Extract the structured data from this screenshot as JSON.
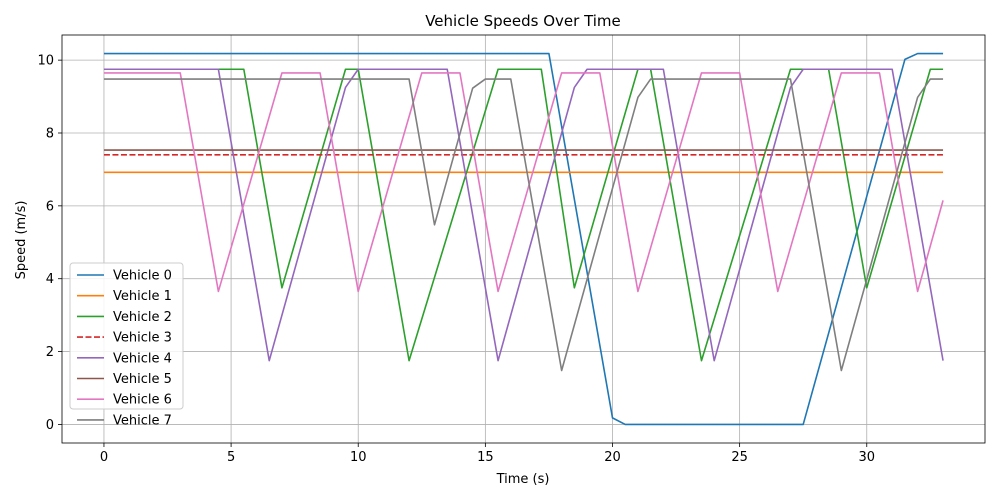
{
  "chart_data": {
    "type": "line",
    "title": "Vehicle Speeds Over Time",
    "xlabel": "Time (s)",
    "ylabel": "Speed (m/s)",
    "xlim": [
      -1.65,
      34.65
    ],
    "ylim": [
      -0.51,
      10.69
    ],
    "xticks": [
      0,
      5,
      10,
      15,
      20,
      25,
      30
    ],
    "yticks": [
      0,
      2,
      4,
      6,
      8,
      10
    ],
    "grid": true,
    "legend_position": "lower-left",
    "series": [
      {
        "name": "Vehicle 0",
        "color": "#1f77b4",
        "dash": "solid",
        "x": [
          0,
          17.5,
          20,
          20.5,
          27.5,
          31.5,
          32,
          33
        ],
        "y": [
          10.18,
          10.18,
          0.18,
          0,
          0,
          10.02,
          10.18,
          10.18
        ]
      },
      {
        "name": "Vehicle 1",
        "color": "#ff7f0e",
        "dash": "solid",
        "x": [
          0,
          33
        ],
        "y": [
          6.92,
          6.92
        ]
      },
      {
        "name": "Vehicle 2",
        "color": "#2ca02c",
        "dash": "solid",
        "x": [
          0,
          5.5,
          7,
          9.5,
          10,
          12,
          15.5,
          17.2,
          18.5,
          21,
          21.5,
          23.5,
          27,
          28.5,
          30,
          32.5,
          33
        ],
        "y": [
          9.75,
          9.75,
          3.75,
          9.75,
          9.75,
          1.75,
          9.75,
          9.75,
          3.75,
          9.75,
          9.75,
          1.75,
          9.75,
          9.75,
          3.75,
          9.75,
          9.75
        ]
      },
      {
        "name": "Vehicle 3",
        "color": "#d62728",
        "dash": "dashed",
        "x": [
          0,
          33
        ],
        "y": [
          7.4,
          7.4
        ]
      },
      {
        "name": "Vehicle 4",
        "color": "#9467bd",
        "dash": "solid",
        "x": [
          0,
          4.5,
          6.5,
          9.5,
          10,
          13.5,
          15.5,
          18.5,
          19,
          22,
          24,
          27,
          27.5,
          31,
          33
        ],
        "y": [
          9.75,
          9.75,
          1.75,
          9.25,
          9.75,
          9.75,
          1.75,
          9.25,
          9.75,
          9.75,
          1.75,
          9.25,
          9.75,
          9.75,
          1.75
        ]
      },
      {
        "name": "Vehicle 5",
        "color": "#8c564b",
        "dash": "solid",
        "x": [
          0,
          33
        ],
        "y": [
          7.53,
          7.53
        ]
      },
      {
        "name": "Vehicle 6",
        "color": "#e377c2",
        "dash": "solid",
        "x": [
          0,
          3,
          4.5,
          7,
          8.5,
          10,
          12.5,
          14,
          15.5,
          18,
          19.5,
          21,
          23.5,
          25,
          26.5,
          29,
          30.5,
          32,
          33
        ],
        "y": [
          9.65,
          9.65,
          3.65,
          9.65,
          9.65,
          3.65,
          9.65,
          9.65,
          3.65,
          9.65,
          9.65,
          3.65,
          9.65,
          9.65,
          3.65,
          9.65,
          9.65,
          3.65,
          6.15
        ]
      },
      {
        "name": "Vehicle 7",
        "color": "#7f7f7f",
        "dash": "solid",
        "x": [
          0,
          12,
          13,
          14.5,
          15,
          16,
          18,
          21,
          21.5,
          27,
          29,
          32,
          32.5,
          33
        ],
        "y": [
          9.48,
          9.48,
          5.48,
          9.23,
          9.48,
          9.48,
          1.48,
          8.98,
          9.48,
          9.48,
          1.48,
          8.98,
          9.48,
          9.48
        ]
      }
    ]
  }
}
